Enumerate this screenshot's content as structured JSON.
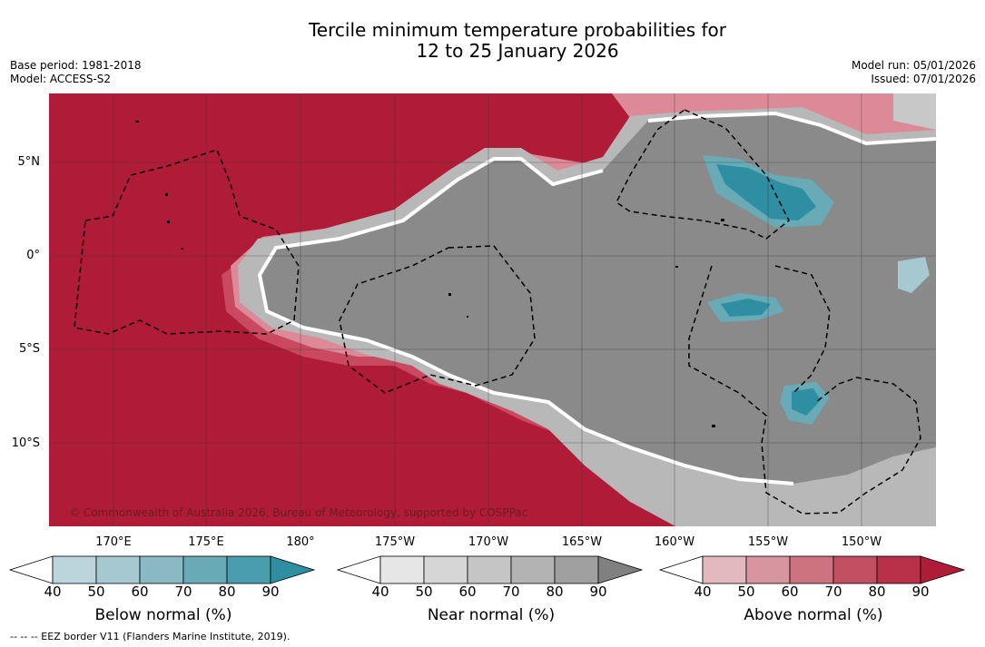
{
  "header": {
    "title_line1": "Tercile minimum temperature probabilities for",
    "title_line2": "12 to 25 January 2026",
    "base_period": "Base period: 1981-2018",
    "model": "Model: ACCESS-S2",
    "model_run": "Model run: 05/01/2026",
    "issued": "Issued: 07/01/2026"
  },
  "map": {
    "lat_labels": [
      "5°N",
      "0°",
      "5°S",
      "10°S"
    ],
    "lon_labels": [
      "170°E",
      "175°E",
      "180°",
      "175°W",
      "170°W",
      "165°W",
      "160°W",
      "155°W",
      "150°W"
    ],
    "copyright": "© Commonwealth of Australia 2026, Bureau of Meteorology, supported by COSPPac",
    "colors": {
      "above_90": "#b01c37",
      "near_80": "#8a8a8a",
      "below_80": "#2e95a8",
      "ocean": "#ffffff"
    }
  },
  "colorbars": [
    {
      "label": "Below normal (%)",
      "ticks": [
        "40",
        "50",
        "60",
        "70",
        "80",
        "90"
      ],
      "colors": [
        "#ffffff",
        "#bcd4dc",
        "#a6c8d0",
        "#8ab9c4",
        "#69aab7",
        "#4a9dac",
        "#2e8fa3"
      ]
    },
    {
      "label": "Near normal (%)",
      "ticks": [
        "40",
        "50",
        "60",
        "70",
        "80",
        "90"
      ],
      "colors": [
        "#ffffff",
        "#e6e6e6",
        "#d6d6d6",
        "#c5c5c5",
        "#b3b3b3",
        "#a0a0a0",
        "#808080"
      ]
    },
    {
      "label": "Above normal (%)",
      "ticks": [
        "40",
        "50",
        "60",
        "70",
        "80",
        "90"
      ],
      "colors": [
        "#ffffff",
        "#e3b9c0",
        "#d7969f",
        "#cc737f",
        "#c25062",
        "#b93148",
        "#b01c37"
      ]
    }
  ],
  "footer": {
    "eez_note": "-- -- -- EEZ border V11 (Flanders Marine Institute, 2019)."
  }
}
